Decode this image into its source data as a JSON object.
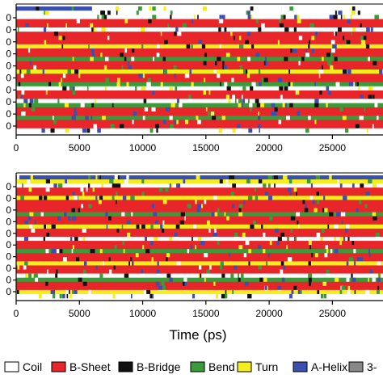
{
  "chart_data": [
    {
      "type": "heatmap",
      "xlim": [
        0,
        29000
      ],
      "xticks": [
        0,
        5000,
        10000,
        15000,
        20000,
        25000
      ],
      "xtick_labels": [
        "0",
        "5000",
        "10000",
        "15000",
        "20000",
        "25000"
      ],
      "yaxis_tick_count": 10,
      "ytick_label_fragment": "0",
      "rows": [
        {
          "state": "A-Helix",
          "until": 6000,
          "then": "Coil"
        },
        {
          "state": "Coil"
        },
        {
          "state": "Coil"
        },
        {
          "state": "B-Sheet"
        },
        {
          "state": "B-Sheet"
        },
        {
          "state": "Coil"
        },
        {
          "state": "B-Sheet"
        },
        {
          "state": "B-Sheet"
        },
        {
          "state": "B-Sheet"
        },
        {
          "state": "Turn"
        },
        {
          "state": "B-Sheet"
        },
        {
          "state": "B-Sheet"
        },
        {
          "state": "Bend"
        },
        {
          "state": "B-Sheet"
        },
        {
          "state": "B-Sheet"
        },
        {
          "state": "Turn"
        },
        {
          "state": "B-Sheet"
        },
        {
          "state": "B-Sheet"
        },
        {
          "state": "Bend"
        },
        {
          "state": "Coil"
        },
        {
          "state": "B-Sheet"
        },
        {
          "state": "B-Sheet"
        },
        {
          "state": "Coil"
        },
        {
          "state": "Bend"
        },
        {
          "state": "B-Sheet"
        },
        {
          "state": "B-Sheet"
        },
        {
          "state": "Bend"
        },
        {
          "state": "B-Sheet"
        },
        {
          "state": "B-Sheet"
        },
        {
          "state": "Coil"
        }
      ]
    },
    {
      "type": "heatmap",
      "xlim": [
        0,
        29000
      ],
      "xticks": [
        0,
        5000,
        10000,
        15000,
        20000,
        25000
      ],
      "xtick_labels": [
        "0",
        "5000",
        "10000",
        "15000",
        "20000",
        "25000"
      ],
      "yaxis_tick_count": 10,
      "ytick_label_fragment": "0",
      "rows": [
        {
          "state": "A-Helix"
        },
        {
          "state": "Turn"
        },
        {
          "state": "Coil"
        },
        {
          "state": "B-Sheet"
        },
        {
          "state": "B-Sheet"
        },
        {
          "state": "Turn"
        },
        {
          "state": "B-Sheet"
        },
        {
          "state": "B-Sheet"
        },
        {
          "state": "B-Sheet"
        },
        {
          "state": "Bend"
        },
        {
          "state": "B-Sheet"
        },
        {
          "state": "B-Sheet"
        },
        {
          "state": "Turn"
        },
        {
          "state": "B-Sheet"
        },
        {
          "state": "B-Sheet"
        },
        {
          "state": "Coil"
        },
        {
          "state": "B-Sheet"
        },
        {
          "state": "B-Sheet"
        },
        {
          "state": "Bend"
        },
        {
          "state": "B-Sheet"
        },
        {
          "state": "B-Sheet"
        },
        {
          "state": "Turn"
        },
        {
          "state": "B-Sheet"
        },
        {
          "state": "B-Sheet"
        },
        {
          "state": "Coil"
        },
        {
          "state": "Bend"
        },
        {
          "state": "B-Sheet"
        },
        {
          "state": "B-Sheet"
        },
        {
          "state": "Turn"
        },
        {
          "state": "Coil"
        }
      ]
    }
  ],
  "xlabel": "Time (ps)",
  "legend": [
    {
      "label": "Coil",
      "color": "#ffffff"
    },
    {
      "label": "B-Sheet",
      "color": "#e8262a"
    },
    {
      "label": "B-Bridge",
      "color": "#111111"
    },
    {
      "label": "Bend",
      "color": "#3a9b3a"
    },
    {
      "label": "Turn",
      "color": "#f4ee1c"
    },
    {
      "label": "A-Helix",
      "color": "#3b4fb0"
    },
    {
      "label": "3-",
      "color": "#888888"
    }
  ],
  "colors": {
    "Coil": "#ffffff",
    "B-Sheet": "#e8262a",
    "B-Bridge": "#111111",
    "Bend": "#3a9b3a",
    "Turn": "#f4ee1c",
    "A-Helix": "#3b4fb0",
    "3-": "#888888"
  }
}
